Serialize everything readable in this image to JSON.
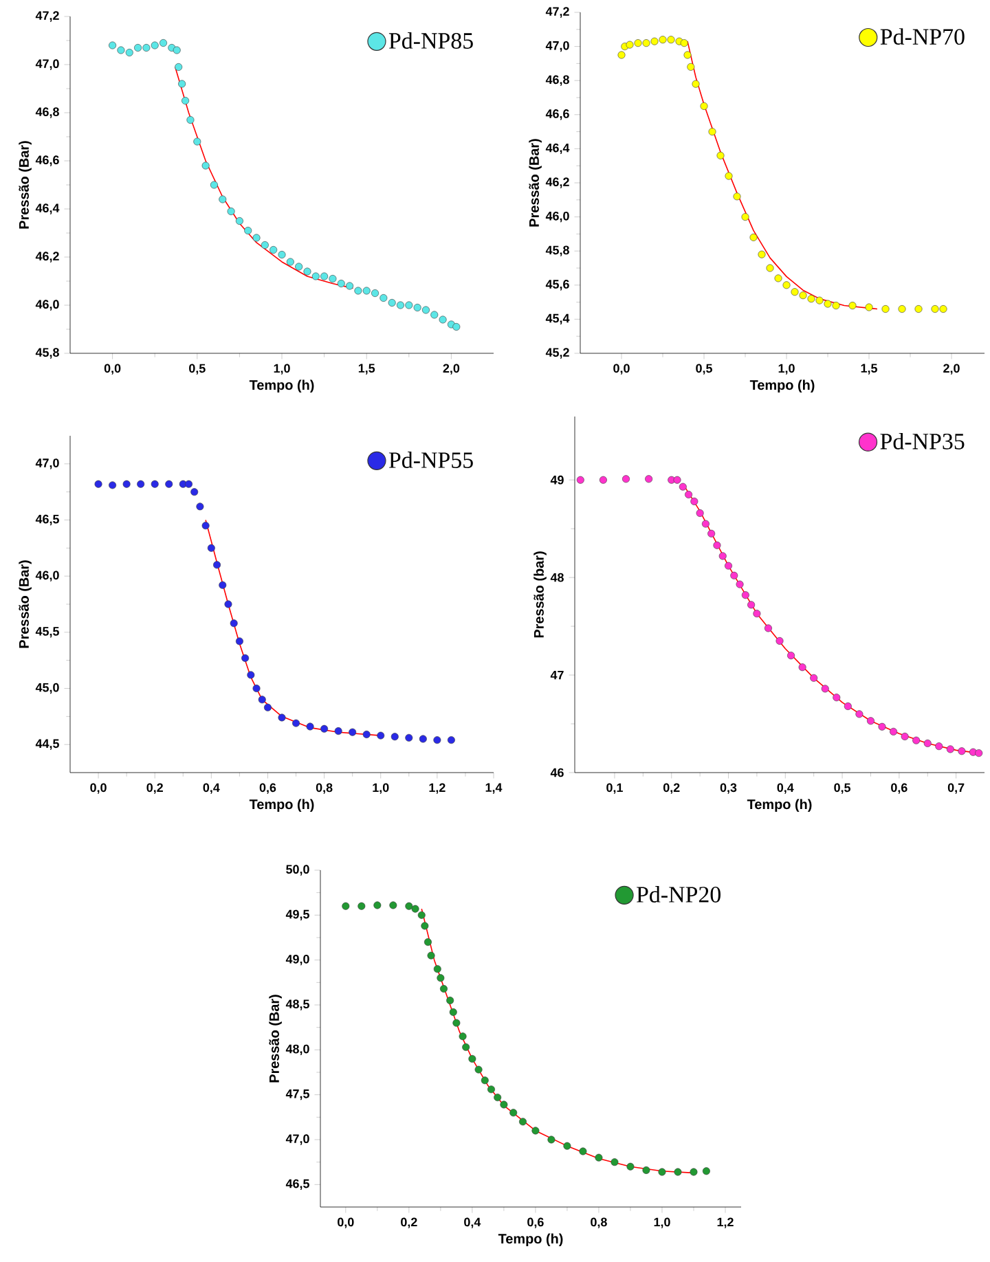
{
  "chart_data": [
    {
      "type": "scatter",
      "xlabel": "Tempo (h)",
      "ylabel": "Pressão (Bar)",
      "legend": "top right",
      "xlim": [
        -0.25,
        2.25
      ],
      "ylim": [
        45.8,
        47.2
      ],
      "xticks": [
        {
          "value": 0,
          "label": "0,0"
        },
        {
          "value": 0.5,
          "label": "0,5"
        },
        {
          "value": 1,
          "label": "1,0"
        },
        {
          "value": 1.5,
          "label": "1,5"
        },
        {
          "value": 2,
          "label": "2,0"
        }
      ],
      "yticks": [
        {
          "value": 45.8,
          "label": "45,8"
        },
        {
          "value": 46,
          "label": "46,0"
        },
        {
          "value": 46.2,
          "label": "46,2"
        },
        {
          "value": 46.4,
          "label": "46,4"
        },
        {
          "value": 46.6,
          "label": "46,6"
        },
        {
          "value": 46.8,
          "label": "46,8"
        },
        {
          "value": 47,
          "label": "47,0"
        },
        {
          "value": 47.2,
          "label": "47,2"
        }
      ],
      "series": [
        {
          "name": "Pd-NP85",
          "marker": "circle",
          "color": "#5ce6e6",
          "x": [
            0,
            0.05,
            0.1,
            0.15,
            0.2,
            0.25,
            0.3,
            0.35,
            0.38,
            0.39,
            0.41,
            0.43,
            0.46,
            0.5,
            0.55,
            0.6,
            0.65,
            0.7,
            0.75,
            0.8,
            0.85,
            0.9,
            0.95,
            1.0,
            1.05,
            1.1,
            1.15,
            1.2,
            1.25,
            1.3,
            1.35,
            1.4,
            1.45,
            1.5,
            1.55,
            1.6,
            1.65,
            1.7,
            1.75,
            1.8,
            1.85,
            1.9,
            1.95,
            2.0,
            2.03
          ],
          "values": [
            47.08,
            47.06,
            47.05,
            47.07,
            47.07,
            47.08,
            47.09,
            47.07,
            47.06,
            46.99,
            46.92,
            46.85,
            46.77,
            46.68,
            46.58,
            46.5,
            46.44,
            46.39,
            46.35,
            46.31,
            46.28,
            46.25,
            46.23,
            46.21,
            46.18,
            46.16,
            46.14,
            46.12,
            46.12,
            46.11,
            46.09,
            46.08,
            46.06,
            46.06,
            46.05,
            46.03,
            46.01,
            46.0,
            46.0,
            45.99,
            45.98,
            45.96,
            45.94,
            45.92,
            45.91
          ]
        },
        {
          "type": "line",
          "marker": "none",
          "color": "#ff0000",
          "x": [
            0.37,
            0.45,
            0.55,
            0.65,
            0.75,
            0.85,
            1.0,
            1.15,
            1.3,
            1.42
          ],
          "values": [
            46.99,
            46.8,
            46.6,
            46.45,
            46.34,
            46.26,
            46.18,
            46.12,
            46.09,
            46.07
          ]
        }
      ]
    },
    {
      "type": "scatter",
      "xlabel": "Tempo (h)",
      "ylabel": "Pressão (Bar)",
      "legend": "top right",
      "xlim": [
        -0.25,
        2.2
      ],
      "ylim": [
        45.2,
        47.2
      ],
      "xticks": [
        {
          "value": 0,
          "label": "0,0"
        },
        {
          "value": 0.5,
          "label": "0,5"
        },
        {
          "value": 1,
          "label": "1,0"
        },
        {
          "value": 1.5,
          "label": "1,5"
        },
        {
          "value": 2,
          "label": "2,0"
        }
      ],
      "yticks": [
        {
          "value": 45.2,
          "label": "45,2"
        },
        {
          "value": 45.4,
          "label": "45,4"
        },
        {
          "value": 45.6,
          "label": "45,6"
        },
        {
          "value": 45.8,
          "label": "45,8"
        },
        {
          "value": 46,
          "label": "46,0"
        },
        {
          "value": 46.2,
          "label": "46,2"
        },
        {
          "value": 46.4,
          "label": "46,4"
        },
        {
          "value": 46.6,
          "label": "46,6"
        },
        {
          "value": 46.8,
          "label": "46,8"
        },
        {
          "value": 47,
          "label": "47,0"
        },
        {
          "value": 47.2,
          "label": "47,2"
        }
      ],
      "series": [
        {
          "name": "Pd-NP70",
          "marker": "circle",
          "color": "#ffff00",
          "x": [
            0,
            0.02,
            0.05,
            0.1,
            0.15,
            0.2,
            0.25,
            0.3,
            0.35,
            0.38,
            0.4,
            0.42,
            0.45,
            0.5,
            0.55,
            0.6,
            0.65,
            0.7,
            0.75,
            0.8,
            0.85,
            0.9,
            0.95,
            1.0,
            1.05,
            1.1,
            1.15,
            1.2,
            1.25,
            1.3,
            1.4,
            1.5,
            1.6,
            1.7,
            1.8,
            1.9,
            1.95
          ],
          "values": [
            46.95,
            47.0,
            47.01,
            47.02,
            47.02,
            47.03,
            47.04,
            47.04,
            47.03,
            47.02,
            46.95,
            46.88,
            46.78,
            46.65,
            46.5,
            46.36,
            46.24,
            46.12,
            46.0,
            45.88,
            45.78,
            45.7,
            45.64,
            45.6,
            45.56,
            45.54,
            45.52,
            45.51,
            45.49,
            45.48,
            45.48,
            45.47,
            45.46,
            45.46,
            45.46,
            45.46,
            45.46
          ]
        },
        {
          "type": "line",
          "marker": "none",
          "color": "#ff0000",
          "x": [
            0.4,
            0.45,
            0.5,
            0.6,
            0.7,
            0.8,
            0.9,
            1.0,
            1.1,
            1.2,
            1.35,
            1.55
          ],
          "values": [
            47.03,
            46.82,
            46.66,
            46.38,
            46.14,
            45.92,
            45.76,
            45.65,
            45.57,
            45.52,
            45.48,
            45.46
          ]
        }
      ]
    },
    {
      "type": "scatter",
      "xlabel": "Tempo (h)",
      "ylabel": "Pressão (Bar)",
      "legend": "top right",
      "xlim": [
        -0.1,
        1.4
      ],
      "ylim": [
        44.25,
        47.25
      ],
      "xticks": [
        {
          "value": 0,
          "label": "0,0"
        },
        {
          "value": 0.2,
          "label": "0,2"
        },
        {
          "value": 0.4,
          "label": "0,4"
        },
        {
          "value": 0.6,
          "label": "0,6"
        },
        {
          "value": 0.8,
          "label": "0,8"
        },
        {
          "value": 1,
          "label": "1,0"
        },
        {
          "value": 1.2,
          "label": "1,2"
        },
        {
          "value": 1.4,
          "label": "1,4"
        }
      ],
      "yticks": [
        {
          "value": 44.5,
          "label": "44,5"
        },
        {
          "value": 45,
          "label": "45,0"
        },
        {
          "value": 45.5,
          "label": "45,5"
        },
        {
          "value": 46,
          "label": "46,0"
        },
        {
          "value": 46.5,
          "label": "46,5"
        },
        {
          "value": 47,
          "label": "47,0"
        }
      ],
      "series": [
        {
          "name": "Pd-NP55",
          "marker": "circle",
          "color": "#2a2ae6",
          "x": [
            0,
            0.05,
            0.1,
            0.15,
            0.2,
            0.25,
            0.3,
            0.32,
            0.34,
            0.36,
            0.38,
            0.4,
            0.42,
            0.44,
            0.46,
            0.48,
            0.5,
            0.52,
            0.54,
            0.56,
            0.58,
            0.6,
            0.65,
            0.7,
            0.75,
            0.8,
            0.85,
            0.9,
            0.95,
            1.0,
            1.05,
            1.1,
            1.15,
            1.2,
            1.25
          ],
          "values": [
            46.82,
            46.81,
            46.82,
            46.82,
            46.82,
            46.82,
            46.82,
            46.82,
            46.75,
            46.62,
            46.45,
            46.25,
            46.1,
            45.92,
            45.75,
            45.58,
            45.42,
            45.27,
            45.12,
            45.0,
            44.9,
            44.83,
            44.74,
            44.69,
            44.66,
            44.64,
            44.62,
            44.61,
            44.59,
            44.58,
            44.57,
            44.56,
            44.55,
            44.54,
            44.54
          ]
        },
        {
          "type": "line",
          "marker": "none",
          "color": "#ff0000",
          "x": [
            0.38,
            0.42,
            0.46,
            0.5,
            0.54,
            0.58,
            0.65,
            0.75,
            0.85,
            1.0
          ],
          "values": [
            46.5,
            46.12,
            45.75,
            45.4,
            45.1,
            44.9,
            44.75,
            44.65,
            44.61,
            44.58
          ]
        }
      ]
    },
    {
      "type": "scatter",
      "xlabel": "Tempo (h)",
      "ylabel": "Pressão (bar)",
      "legend": "top right",
      "xlim": [
        0.03,
        0.75
      ],
      "ylim": [
        46,
        49.65
      ],
      "xticks": [
        {
          "value": 0.1,
          "label": "0,1"
        },
        {
          "value": 0.2,
          "label": "0,2"
        },
        {
          "value": 0.3,
          "label": "0,3"
        },
        {
          "value": 0.4,
          "label": "0,4"
        },
        {
          "value": 0.5,
          "label": "0,5"
        },
        {
          "value": 0.6,
          "label": "0,6"
        },
        {
          "value": 0.7,
          "label": "0,7"
        }
      ],
      "yticks": [
        46,
        47,
        48,
        49
      ],
      "series": [
        {
          "name": "Pd-NP35",
          "marker": "circle",
          "color": "#ff33cc",
          "x": [
            0.04,
            0.08,
            0.12,
            0.16,
            0.2,
            0.21,
            0.22,
            0.23,
            0.24,
            0.25,
            0.26,
            0.27,
            0.28,
            0.29,
            0.3,
            0.31,
            0.32,
            0.33,
            0.34,
            0.35,
            0.37,
            0.39,
            0.41,
            0.43,
            0.45,
            0.47,
            0.49,
            0.51,
            0.53,
            0.55,
            0.57,
            0.59,
            0.61,
            0.63,
            0.65,
            0.67,
            0.69,
            0.71,
            0.73,
            0.74
          ],
          "values": [
            49.0,
            49.0,
            49.01,
            49.01,
            49.0,
            49.0,
            48.93,
            48.85,
            48.78,
            48.66,
            48.55,
            48.45,
            48.33,
            48.22,
            48.12,
            48.02,
            47.93,
            47.82,
            47.72,
            47.63,
            47.48,
            47.35,
            47.2,
            47.08,
            46.97,
            46.86,
            46.77,
            46.68,
            46.6,
            46.53,
            46.47,
            46.42,
            46.37,
            46.33,
            46.3,
            46.27,
            46.24,
            46.22,
            46.21,
            46.2
          ]
        },
        {
          "type": "line",
          "marker": "none",
          "color": "#ff0000",
          "x": [
            0.22,
            0.25,
            0.3,
            0.35,
            0.4,
            0.45,
            0.5,
            0.55,
            0.6,
            0.65,
            0.7,
            0.74
          ],
          "values": [
            48.96,
            48.68,
            48.12,
            47.63,
            47.27,
            46.97,
            46.72,
            46.53,
            46.4,
            46.3,
            46.23,
            46.2
          ]
        }
      ]
    },
    {
      "type": "scatter",
      "xlabel": "Tempo (h)",
      "ylabel": "Pressão (Bar)",
      "legend": "top right",
      "xlim": [
        -0.08,
        1.25
      ],
      "ylim": [
        46.25,
        50
      ],
      "xticks": [
        {
          "value": 0,
          "label": "0,0"
        },
        {
          "value": 0.2,
          "label": "0,2"
        },
        {
          "value": 0.4,
          "label": "0,4"
        },
        {
          "value": 0.6,
          "label": "0,6"
        },
        {
          "value": 0.8,
          "label": "0,8"
        },
        {
          "value": 1,
          "label": "1,0"
        },
        {
          "value": 1.2,
          "label": "1,2"
        }
      ],
      "yticks": [
        {
          "value": 46.5,
          "label": "46,5"
        },
        {
          "value": 47,
          "label": "47,0"
        },
        {
          "value": 47.5,
          "label": "47,5"
        },
        {
          "value": 48,
          "label": "48,0"
        },
        {
          "value": 48.5,
          "label": "48,5"
        },
        {
          "value": 49,
          "label": "49,0"
        },
        {
          "value": 49.5,
          "label": "49,5"
        },
        {
          "value": 50,
          "label": "50,0"
        }
      ],
      "series": [
        {
          "name": "Pd-NP20",
          "marker": "circle",
          "color": "#229933",
          "x": [
            0,
            0.05,
            0.1,
            0.15,
            0.2,
            0.22,
            0.24,
            0.25,
            0.26,
            0.27,
            0.29,
            0.3,
            0.31,
            0.33,
            0.34,
            0.35,
            0.37,
            0.38,
            0.4,
            0.42,
            0.44,
            0.46,
            0.48,
            0.5,
            0.53,
            0.56,
            0.6,
            0.65,
            0.7,
            0.75,
            0.8,
            0.85,
            0.9,
            0.95,
            1.0,
            1.05,
            1.1,
            1.14
          ],
          "values": [
            49.6,
            49.6,
            49.61,
            49.61,
            49.6,
            49.57,
            49.5,
            49.38,
            49.2,
            49.05,
            48.9,
            48.8,
            48.68,
            48.55,
            48.42,
            48.3,
            48.15,
            48.03,
            47.9,
            47.78,
            47.66,
            47.56,
            47.47,
            47.39,
            47.3,
            47.2,
            47.1,
            47.0,
            46.93,
            46.87,
            46.8,
            46.75,
            46.7,
            46.66,
            46.64,
            46.64,
            46.64,
            46.65
          ]
        },
        {
          "type": "line",
          "marker": "none",
          "color": "#ff0000",
          "x": [
            0.24,
            0.28,
            0.32,
            0.36,
            0.4,
            0.45,
            0.5,
            0.6,
            0.7,
            0.8,
            0.9,
            1.0,
            1.1
          ],
          "values": [
            49.57,
            49.0,
            48.6,
            48.2,
            47.9,
            47.6,
            47.38,
            47.1,
            46.93,
            46.79,
            46.7,
            46.65,
            46.63
          ]
        }
      ]
    }
  ]
}
